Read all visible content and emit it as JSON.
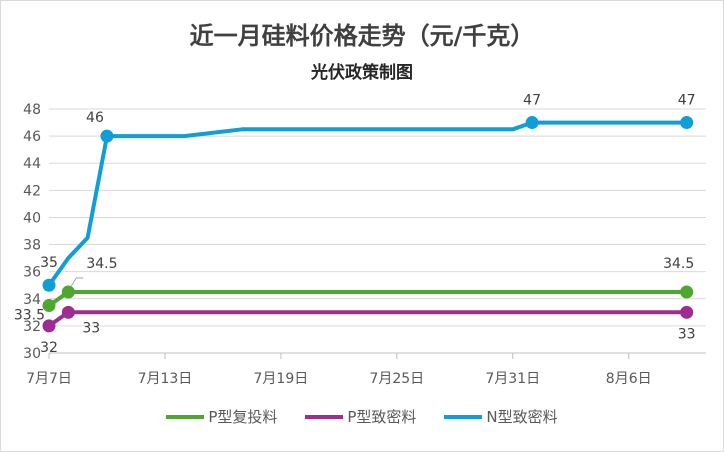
{
  "chart_data": {
    "type": "line",
    "title": "近一月硅料价格走势（元/千克）",
    "subtitle": "光伏政策制图",
    "xlabel": "",
    "ylabel": "",
    "x_range": [
      "2023-07-07",
      "2023-08-10"
    ],
    "x_ticks": [
      {
        "date": "2023-07-07",
        "label": "7月7日"
      },
      {
        "date": "2023-07-13",
        "label": "7月13日"
      },
      {
        "date": "2023-07-19",
        "label": "7月19日"
      },
      {
        "date": "2023-07-25",
        "label": "7月25日"
      },
      {
        "date": "2023-07-31",
        "label": "7月31日"
      },
      {
        "date": "2023-08-06",
        "label": "8月6日"
      }
    ],
    "ylim": [
      30,
      48
    ],
    "y_ticks": [
      30,
      32,
      34,
      36,
      38,
      40,
      42,
      44,
      46,
      48
    ],
    "grid": "horizontal",
    "legend": "bottom",
    "series": [
      {
        "name": "P型复投料",
        "color": "#4ea72e",
        "points": [
          [
            "2023-07-07",
            33.5
          ],
          [
            "2023-07-08",
            34.5
          ],
          [
            "2023-08-09",
            34.5
          ]
        ],
        "markers": [
          [
            "2023-07-07",
            33.5
          ],
          [
            "2023-07-08",
            34.5
          ],
          [
            "2023-08-09",
            34.5
          ]
        ],
        "labels": [
          {
            "date": "2023-07-07",
            "value": 33.5,
            "text": "33.5"
          },
          {
            "date": "2023-07-08",
            "value": 34.5,
            "text": "34.5"
          },
          {
            "date": "2023-08-09",
            "value": 34.5,
            "text": "34.5"
          }
        ]
      },
      {
        "name": "P型致密料",
        "color": "#a02b93",
        "points": [
          [
            "2023-07-07",
            32
          ],
          [
            "2023-07-08",
            33
          ],
          [
            "2023-08-09",
            33
          ]
        ],
        "markers": [
          [
            "2023-07-07",
            32
          ],
          [
            "2023-07-08",
            33
          ],
          [
            "2023-08-09",
            33
          ]
        ],
        "labels": [
          {
            "date": "2023-07-07",
            "value": 32,
            "text": "32"
          },
          {
            "date": "2023-07-08",
            "value": 33,
            "text": "33"
          },
          {
            "date": "2023-08-09",
            "value": 33,
            "text": "33"
          }
        ]
      },
      {
        "name": "N型致密料",
        "color": "#0f9ed5",
        "points": [
          [
            "2023-07-07",
            35
          ],
          [
            "2023-07-08",
            37
          ],
          [
            "2023-07-09",
            38.5
          ],
          [
            "2023-07-10",
            46
          ],
          [
            "2023-07-14",
            46
          ],
          [
            "2023-07-17",
            46.5
          ],
          [
            "2023-07-31",
            46.5
          ],
          [
            "2023-08-01",
            47
          ],
          [
            "2023-08-09",
            47
          ]
        ],
        "markers": [
          [
            "2023-07-07",
            35
          ],
          [
            "2023-07-10",
            46
          ],
          [
            "2023-08-01",
            47
          ],
          [
            "2023-08-09",
            47
          ]
        ],
        "labels": [
          {
            "date": "2023-07-07",
            "value": 35,
            "text": "35"
          },
          {
            "date": "2023-07-10",
            "value": 46,
            "text": "46"
          },
          {
            "date": "2023-08-01",
            "value": 47,
            "text": "47"
          },
          {
            "date": "2023-08-09",
            "value": 47,
            "text": "47"
          }
        ]
      }
    ]
  }
}
